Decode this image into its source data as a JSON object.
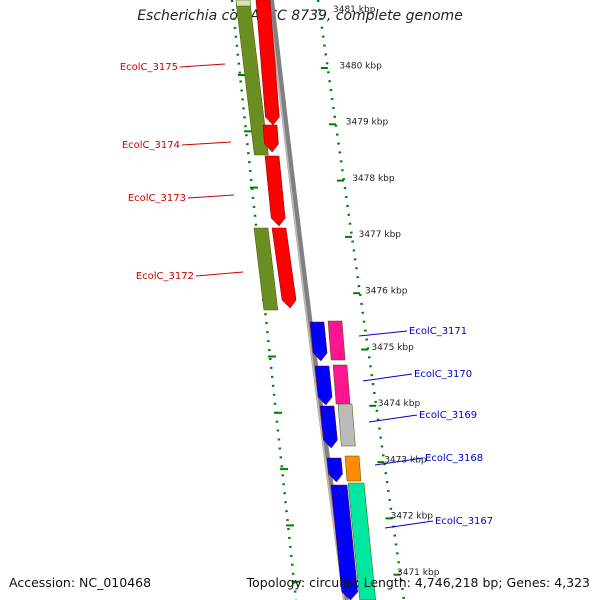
{
  "title": "Escherichia coli ATCC 8739, complete genome",
  "footer": {
    "accession": "Accession: NC_010468",
    "summary": "Topology: circular; Length: 4,746,218 bp; Genes: 4,323"
  },
  "colors": {
    "forward_gene": "#ff0000",
    "reverse_gene": "#0000ff",
    "forward_cds_track": "#6b8e23",
    "tick": "#008000",
    "backbone": "#808080",
    "forward_label": "#cc0000",
    "reverse_label": "#0000cc"
  },
  "scale_labels": [
    "3481 kbp",
    "3480 kbp",
    "3479 kbp",
    "3478 kbp",
    "3477 kbp",
    "3476 kbp",
    "3475 kbp",
    "3474 kbp",
    "3473 kbp",
    "3472 kbp",
    "3471 kbp"
  ],
  "forward_genes": [
    "EcolC_3175",
    "EcolC_3174",
    "EcolC_3173",
    "EcolC_3172"
  ],
  "reverse_genes": [
    "EcolC_3171",
    "EcolC_3170",
    "EcolC_3169",
    "EcolC_3168",
    "EcolC_3167"
  ]
}
